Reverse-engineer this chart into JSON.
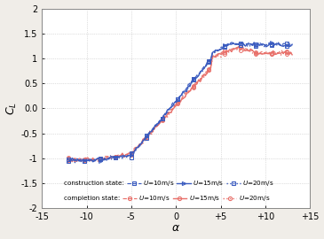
{
  "title": "",
  "xlabel": "α",
  "ylabel": "$C_L$",
  "xlim": [
    -15,
    15
  ],
  "ylim": [
    -2.0,
    2.0
  ],
  "xticks": [
    -15,
    -10,
    -5,
    0,
    5,
    10,
    15
  ],
  "xtick_labels": [
    "-15",
    "-10",
    "-5",
    "0",
    "+5",
    "+10",
    "+15"
  ],
  "yticks": [
    -2.0,
    -1.5,
    -1.0,
    -0.5,
    0.0,
    0.5,
    1.0,
    1.5,
    2.0
  ],
  "completion_color": "#e8706a",
  "construction_color": "#3a5bbf",
  "fig_background": "#f0ede8",
  "ax_background": "#ffffff",
  "legend_completion_label": "completion state:",
  "legend_construction_label": "construction state:",
  "legend_u10": "$U$=10m/s",
  "legend_u15": "$U$=15m/s",
  "legend_u20": "$U$=20m/s"
}
